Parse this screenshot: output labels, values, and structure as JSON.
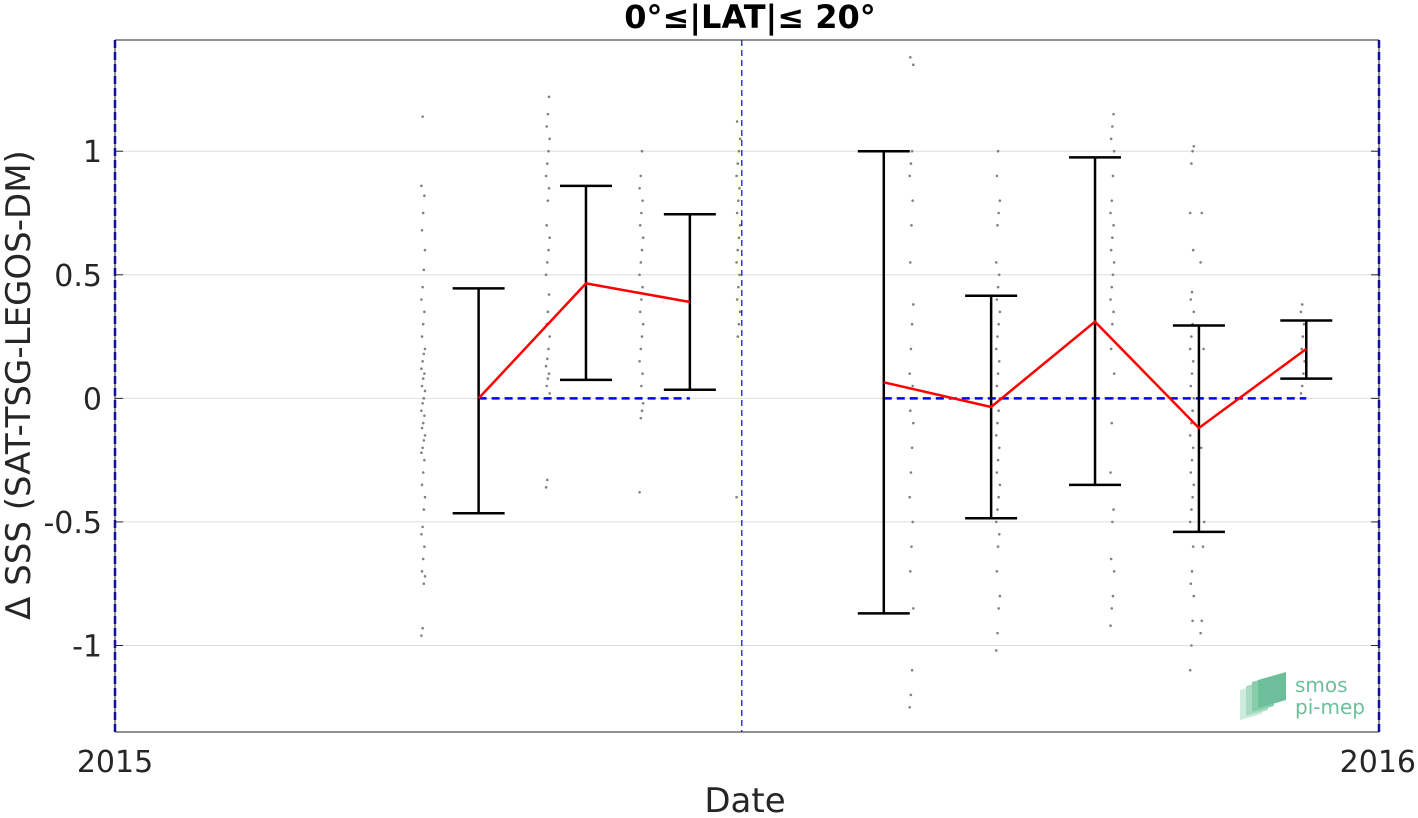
{
  "chart_data": {
    "type": "scatter",
    "title": "0°≤|LAT|≤ 20°",
    "xlabel": "Date",
    "ylabel": "Δ SSS (SAT-TSG-LEGOS-DM)",
    "xlim": [
      "2015-01-01",
      "2016-01-01"
    ],
    "ylim": [
      -1.35,
      1.45
    ],
    "x_tick_labels": [
      {
        "x": "2015-01-01",
        "label": "2015"
      },
      {
        "x": "2016-01-01",
        "label": "2016"
      }
    ],
    "y_ticks": [
      -1,
      -0.5,
      0,
      0.5,
      1
    ],
    "y_tick_labels": [
      "-1",
      "-0.5",
      "0",
      "0.5",
      "1"
    ],
    "grid": "horizontal",
    "mean_series": {
      "color": "#ff0000",
      "segments": [
        [
          {
            "x": "2015-04-16",
            "y": 0.0
          },
          {
            "x": "2015-05-17",
            "y": 0.465
          },
          {
            "x": "2015-06-16",
            "y": 0.39
          }
        ],
        [
          {
            "x": "2015-08-11",
            "y": 0.065
          },
          {
            "x": "2015-09-11",
            "y": -0.035
          },
          {
            "x": "2015-10-11",
            "y": 0.31
          },
          {
            "x": "2015-11-10",
            "y": -0.12
          },
          {
            "x": "2015-12-11",
            "y": 0.2
          }
        ]
      ]
    },
    "error_bars": {
      "color": "#000000",
      "items": [
        {
          "x": "2015-04-16",
          "low": -0.465,
          "high": 0.445
        },
        {
          "x": "2015-05-17",
          "low": 0.075,
          "high": 0.86
        },
        {
          "x": "2015-06-16",
          "low": 0.035,
          "high": 0.745
        },
        {
          "x": "2015-08-11",
          "low": -0.87,
          "high": 1.0
        },
        {
          "x": "2015-09-11",
          "low": -0.485,
          "high": 0.415
        },
        {
          "x": "2015-10-11",
          "low": -0.35,
          "high": 0.975
        },
        {
          "x": "2015-11-10",
          "low": -0.54,
          "high": 0.295
        },
        {
          "x": "2015-12-11",
          "low": 0.08,
          "high": 0.315
        }
      ]
    },
    "zero_reference": {
      "color": "#0000ff",
      "segments": [
        {
          "from": "2015-04-16",
          "to": "2015-06-16",
          "y": 0
        },
        {
          "from": "2015-08-11",
          "to": "2015-12-11",
          "y": 0
        }
      ]
    },
    "vertical_markers": {
      "color": "#0000ff",
      "x": [
        "2015-01-01",
        "2015-07-01",
        "2016-01-01"
      ]
    },
    "raw_scatter": {
      "color": "#808080",
      "clusters": [
        {
          "x": "2015-03-31",
          "points": [
            -0.96,
            -0.93,
            -0.75,
            -0.72,
            -0.7,
            -0.65,
            -0.6,
            -0.55,
            -0.52,
            -0.45,
            -0.4,
            -0.35,
            -0.3,
            -0.25,
            -0.22,
            -0.2,
            -0.17,
            -0.15,
            -0.12,
            -0.1,
            -0.07,
            -0.05,
            -0.02,
            0.0,
            0.03,
            0.05,
            0.08,
            0.1,
            0.12,
            0.15,
            0.18,
            0.2,
            0.25,
            0.3,
            0.35,
            0.4,
            0.45,
            0.52,
            0.6,
            0.68,
            0.75,
            0.82,
            0.86,
            1.14
          ]
        },
        {
          "x": "2015-05-06",
          "points": [
            -0.36,
            -0.33,
            0.0,
            0.02,
            0.05,
            0.08,
            0.1,
            0.13,
            0.16,
            0.2,
            0.25,
            0.3,
            0.35,
            0.42,
            0.5,
            0.55,
            0.6,
            0.65,
            0.7,
            0.8,
            0.85,
            0.9,
            0.95,
            1.0,
            1.05,
            1.1,
            1.15,
            1.22
          ]
        },
        {
          "x": "2015-06-02",
          "points": [
            -0.38,
            -0.08,
            -0.05,
            -0.02,
            0.0,
            0.05,
            0.1,
            0.15,
            0.2,
            0.25,
            0.3,
            0.35,
            0.4,
            0.45,
            0.5,
            0.55,
            0.6,
            0.65,
            0.7,
            0.75,
            0.8,
            0.85,
            0.9,
            1.0
          ]
        },
        {
          "x": "2015-06-30",
          "points": [
            -0.4,
            0.25,
            0.3,
            0.35,
            0.4,
            0.45,
            0.5,
            0.55,
            0.6,
            0.65,
            0.7,
            0.75,
            0.8,
            0.85,
            0.9,
            0.95,
            1.0,
            1.05,
            1.12
          ]
        },
        {
          "x": "2015-08-19",
          "points": [
            -1.25,
            -1.2,
            -1.1,
            -0.85,
            -0.7,
            -0.6,
            -0.5,
            -0.4,
            -0.3,
            -0.2,
            -0.1,
            -0.05,
            0.0,
            0.05,
            0.1,
            0.2,
            0.3,
            0.38,
            0.55,
            0.7,
            0.8,
            0.9,
            0.95,
            1.0,
            1.35,
            1.38
          ]
        },
        {
          "x": "2015-09-13",
          "points": [
            -1.02,
            -0.95,
            -0.85,
            -0.8,
            -0.7,
            -0.6,
            -0.55,
            -0.5,
            -0.45,
            -0.4,
            -0.35,
            -0.3,
            -0.25,
            -0.2,
            -0.15,
            -0.1,
            -0.05,
            0.0,
            0.05,
            0.1,
            0.15,
            0.2,
            0.25,
            0.3,
            0.35,
            0.4,
            0.45,
            0.5,
            0.55,
            0.7,
            0.75,
            0.8,
            0.9,
            1.0
          ]
        },
        {
          "x": "2015-10-16",
          "points": [
            -0.92,
            -0.85,
            -0.8,
            -0.7,
            -0.65,
            -0.5,
            -0.45,
            -0.3,
            -0.1,
            0.0,
            0.1,
            0.2,
            0.3,
            0.35,
            0.4,
            0.45,
            0.5,
            0.55,
            0.6,
            0.65,
            0.7,
            0.75,
            0.8,
            0.9,
            1.0,
            1.05,
            1.1,
            1.15
          ]
        },
        {
          "x": "2015-11-08",
          "points": [
            -1.1,
            -1.0,
            -0.9,
            -0.8,
            -0.75,
            -0.7,
            -0.6,
            -0.5,
            -0.45,
            -0.4,
            -0.35,
            -0.3,
            -0.25,
            -0.2,
            -0.15,
            -0.1,
            -0.05,
            0.0,
            0.05,
            0.1,
            0.15,
            0.2,
            0.25,
            0.3,
            0.35,
            0.4,
            0.43,
            0.6,
            0.75,
            0.95,
            1.0,
            1.02
          ]
        },
        {
          "x": "2015-11-11",
          "points": [
            -0.95,
            -0.9,
            -0.6,
            -0.5,
            -0.2,
            0.0,
            0.2,
            0.55,
            0.75
          ]
        },
        {
          "x": "2015-12-10",
          "points": [
            0.02,
            0.05,
            0.1,
            0.15,
            0.2,
            0.25,
            0.3,
            0.35,
            0.38
          ]
        }
      ]
    }
  },
  "logo": {
    "line1": "smos",
    "line2": "pi-mep"
  }
}
